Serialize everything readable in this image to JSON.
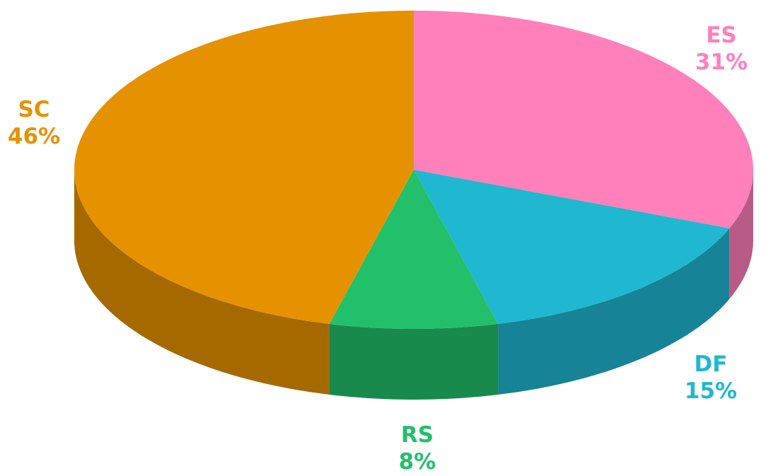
{
  "chart_data": {
    "type": "pie",
    "categories": [
      "ES",
      "DF",
      "RS",
      "SC"
    ],
    "values": [
      31,
      15,
      8,
      46
    ],
    "value_labels": [
      "31%",
      "15%",
      "8%",
      "46%"
    ],
    "colors": [
      "#ff80bb",
      "#1fb8d0",
      "#22c06a",
      "#e69200"
    ]
  }
}
